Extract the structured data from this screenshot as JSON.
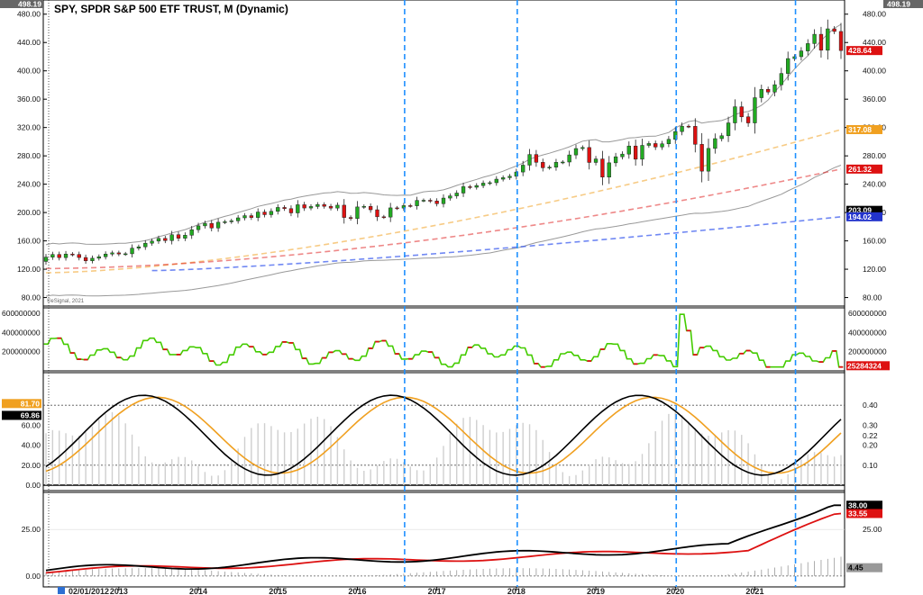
{
  "title": "SPY, SPDR S&P 500 ETF TRUST, M (Dynamic)",
  "watermark": "©eSignal, 2021",
  "top_left_value": "498.19",
  "top_right_value": "498.19",
  "bottom_left_date": "02/01/2012",
  "colors": {
    "up_candle": "#22aa22",
    "down_candle": "#dd1111",
    "volume_line_up": "#44cc00",
    "volume_line_down": "#dd1111",
    "orange": "#f0a020",
    "red": "#dd1111",
    "blue_dashed": "#3355ee",
    "gray_envelope": "#999999",
    "vertical_marker": "#1e90ff"
  },
  "chart_data": [
    {
      "panel": "price",
      "type": "candlestick",
      "y_axis_ticks": [
        "480.00",
        "440.00",
        "400.00",
        "360.00",
        "320.00",
        "280.00",
        "240.00",
        "200.00",
        "160.00",
        "120.00",
        "80.00"
      ],
      "ylim": [
        68,
        500
      ],
      "x_axis_labels": [
        "2013",
        "2014",
        "2015",
        "2016",
        "2017",
        "2018",
        "2019",
        "2020",
        "2021"
      ],
      "value_tags": [
        {
          "value": "428.64",
          "color": "#dd1111"
        },
        {
          "value": "317.08",
          "color": "#f0a020"
        },
        {
          "value": "261.32",
          "color": "#dd1111"
        },
        {
          "value": "203.09",
          "color": "#000000"
        },
        {
          "value": "194.02",
          "color": "#2233cc"
        }
      ],
      "series": [
        {
          "name": "close",
          "values": [
            137.0,
            140.8,
            136.4,
            141.4,
            140.8,
            136.5,
            131.9,
            135.5,
            137.6,
            141.4,
            143.1,
            141.5,
            141.8,
            149.7,
            151.6,
            156.7,
            159.7,
            163.5,
            160.4,
            168.7,
            163.7,
            168.0,
            175.8,
            181.2,
            184.7,
            178.2,
            186.3,
            187.0,
            188.3,
            192.5,
            195.6,
            193.0,
            200.7,
            197.0,
            201.7,
            207.2,
            205.5,
            199.5,
            211.0,
            206.4,
            208.5,
            211.2,
            208.8,
            206.3,
            210.4,
            193.0,
            191.6,
            207.9,
            208.7,
            203.9,
            194.0,
            193.6,
            206.6,
            206.3,
            209.8,
            209.5,
            217.1,
            217.3,
            216.3,
            212.5,
            220.4,
            223.5,
            227.5,
            236.5,
            235.7,
            238.1,
            241.5,
            242.1,
            247.1,
            249.2,
            251.2,
            257.2,
            266.9,
            281.9,
            270.9,
            263.2,
            264.0,
            270.9,
            271.3,
            281.3,
            290.3,
            291.8,
            270.7,
            275.6,
            250.0,
            270.2,
            278.7,
            282.5,
            293.9,
            275.3,
            294.8,
            297.4,
            292.5,
            297.0,
            303.3,
            314.3,
            321.9,
            321.7,
            296.3,
            258.4,
            290.5,
            304.3,
            308.4,
            326.5,
            349.3,
            335.1,
            326.5,
            362.1,
            373.9,
            370.1,
            380.4,
            396.3,
            417.3,
            420.0,
            428.1,
            438.5,
            451.6,
            429.1,
            459.3,
            455.6,
            428.64
          ]
        },
        {
          "name": "orange_dashed_average",
          "style": "dashed",
          "values_endpoints": [
            115,
            317.08
          ]
        },
        {
          "name": "red_dashed_average",
          "style": "dashed",
          "values_endpoints": [
            121,
            261.32
          ]
        },
        {
          "name": "blue_dashed_average",
          "style": "dashed",
          "values_endpoints": [
            118,
            194.02
          ]
        },
        {
          "name": "upper_envelope",
          "values_endpoints": [
            148,
            428.64
          ]
        },
        {
          "name": "lower_envelope",
          "values_endpoints": [
            82,
            203.09
          ]
        }
      ]
    },
    {
      "panel": "volume",
      "type": "line",
      "y_axis_ticks": [
        "600000000",
        "400000000",
        "200000000"
      ],
      "ylim": [
        0,
        620000000
      ],
      "value_tags": [
        {
          "value": "25284324",
          "color": "#dd1111"
        }
      ]
    },
    {
      "panel": "oscillator",
      "type": "line",
      "y_axis_ticks_left": [
        "80.00",
        "60.00",
        "40.00",
        "20.00",
        "0.00"
      ],
      "y_axis_ticks_right": [
        "0.40",
        "0.30",
        "0.20",
        "0.10"
      ],
      "ylim": [
        0,
        100
      ],
      "reference_lines": [
        80,
        20
      ],
      "value_tags_left": [
        {
          "value": "81.70",
          "color": "#f0a020"
        },
        {
          "value": "69.86",
          "color": "#000000"
        }
      ],
      "value_tags_right": [
        {
          "value": "0.22",
          "color": "#000000"
        }
      ]
    },
    {
      "panel": "trend",
      "type": "line",
      "y_axis_ticks_left": [
        "25.00",
        "0.00"
      ],
      "y_axis_ticks_right": [
        "25.00"
      ],
      "ylim": [
        -2,
        42
      ],
      "value_tags": [
        {
          "value": "38.00",
          "color": "#000000"
        },
        {
          "value": "33.55",
          "color": "#dd1111"
        },
        {
          "value": "4.45",
          "color": "#999999"
        }
      ]
    }
  ]
}
